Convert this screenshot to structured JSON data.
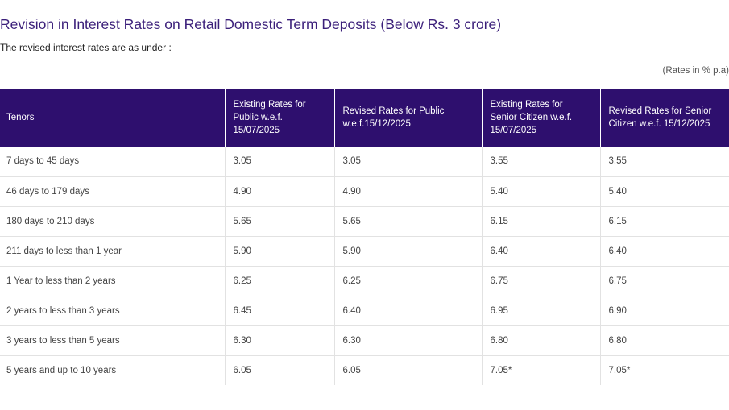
{
  "title": "Revision in Interest Rates on Retail Domestic Term Deposits (Below Rs. 3 crore)",
  "subtitle": "The revised interest rates are as under :",
  "rates_note": "(Rates in % p.a)",
  "table": {
    "headers": [
      "Tenors",
      "Existing Rates for Public w.e.f. 15/07/2025",
      "Revised Rates for Public w.e.f.15/12/2025",
      "Existing Rates for Senior Citizen w.e.f. 15/07/2025",
      "Revised Rates for Senior Citizen  w.e.f. 15/12/2025"
    ],
    "rows": [
      [
        "7 days to 45 days",
        "3.05",
        "3.05",
        "3.55",
        "3.55"
      ],
      [
        "46 days to 179 days",
        "4.90",
        "4.90",
        "5.40",
        "5.40"
      ],
      [
        "180 days to 210 days",
        "5.65",
        "5.65",
        "6.15",
        "6.15"
      ],
      [
        "211 days to less than 1 year",
        "5.90",
        "5.90",
        "6.40",
        "6.40"
      ],
      [
        "1 Year to less than 2 years",
        "6.25",
        "6.25",
        "6.75",
        "6.75"
      ],
      [
        "2 years to less than 3 years",
        "6.45",
        "6.40",
        "6.95",
        "6.90"
      ],
      [
        "3 years to less than 5 years",
        "6.30",
        "6.30",
        "6.80",
        "6.80"
      ],
      [
        "5 years and up to 10 years",
        "6.05",
        "6.05",
        " 7.05*",
        " 7.05*"
      ]
    ]
  },
  "colors": {
    "header_bg": "#2e0f6e",
    "title": "#3b1f7a",
    "grid": "#e2e2e2"
  }
}
